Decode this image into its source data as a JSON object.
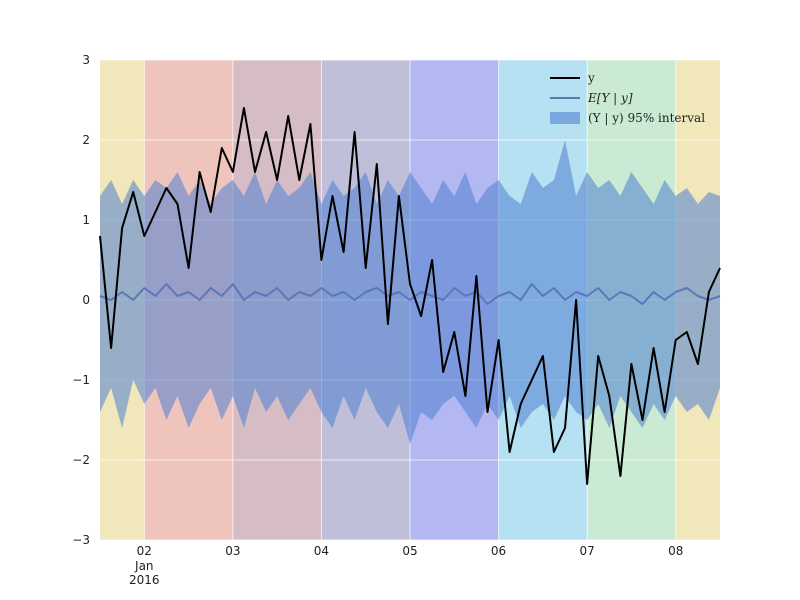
{
  "chart_data": {
    "type": "line",
    "title": "",
    "xlabel": "",
    "ylabel": "",
    "ylim": [
      -3,
      3
    ],
    "xlim": [
      "2016-01-01T12:00",
      "2016-01-08T12:00"
    ],
    "yticks": [
      -3,
      -2,
      -1,
      0,
      1,
      2,
      3
    ],
    "ytick_labels": [
      "−3",
      "−2",
      "−1",
      "0",
      "1",
      "2",
      "3"
    ],
    "xticks": [
      {
        "date": "2016-01-02",
        "label": "02",
        "sublabels": [
          "Jan",
          "2016"
        ]
      },
      {
        "date": "2016-01-03",
        "label": "03",
        "sublabels": []
      },
      {
        "date": "2016-01-04",
        "label": "04",
        "sublabels": []
      },
      {
        "date": "2016-01-05",
        "label": "05",
        "sublabels": []
      },
      {
        "date": "2016-01-06",
        "label": "06",
        "sublabels": []
      },
      {
        "date": "2016-01-07",
        "label": "07",
        "sublabels": []
      },
      {
        "date": "2016-01-08",
        "label": "08",
        "sublabels": []
      }
    ],
    "grid": true,
    "legend_position": "top-right",
    "background_bands": [
      {
        "start": "2016-01-01T12:00",
        "end": "2016-01-02T00:00",
        "color": "#e6d78c"
      },
      {
        "start": "2016-01-02T00:00",
        "end": "2016-01-03T00:00",
        "color": "#e59c8f"
      },
      {
        "start": "2016-01-03T00:00",
        "end": "2016-01-04T00:00",
        "color": "#b98f9f"
      },
      {
        "start": "2016-01-04T00:00",
        "end": "2016-01-05T00:00",
        "color": "#9594c2"
      },
      {
        "start": "2016-01-05T00:00",
        "end": "2016-01-06T00:00",
        "color": "#8288ea"
      },
      {
        "start": "2016-01-06T00:00",
        "end": "2016-01-07T00:00",
        "color": "#84cdea"
      },
      {
        "start": "2016-01-07T00:00",
        "end": "2016-01-08T00:00",
        "color": "#a8dcb6"
      },
      {
        "start": "2016-01-08T00:00",
        "end": "2016-01-08T12:00",
        "color": "#e6d78c"
      }
    ],
    "x": [
      "2016-01-01T12:00",
      "2016-01-01T15:00",
      "2016-01-01T18:00",
      "2016-01-01T21:00",
      "2016-01-02T00:00",
      "2016-01-02T03:00",
      "2016-01-02T06:00",
      "2016-01-02T09:00",
      "2016-01-02T12:00",
      "2016-01-02T15:00",
      "2016-01-02T18:00",
      "2016-01-02T21:00",
      "2016-01-03T00:00",
      "2016-01-03T03:00",
      "2016-01-03T06:00",
      "2016-01-03T09:00",
      "2016-01-03T12:00",
      "2016-01-03T15:00",
      "2016-01-03T18:00",
      "2016-01-03T21:00",
      "2016-01-04T00:00",
      "2016-01-04T03:00",
      "2016-01-04T06:00",
      "2016-01-04T09:00",
      "2016-01-04T12:00",
      "2016-01-04T15:00",
      "2016-01-04T18:00",
      "2016-01-04T21:00",
      "2016-01-05T00:00",
      "2016-01-05T03:00",
      "2016-01-05T06:00",
      "2016-01-05T09:00",
      "2016-01-05T12:00",
      "2016-01-05T15:00",
      "2016-01-05T18:00",
      "2016-01-05T21:00",
      "2016-01-06T00:00",
      "2016-01-06T03:00",
      "2016-01-06T06:00",
      "2016-01-06T09:00",
      "2016-01-06T12:00",
      "2016-01-06T15:00",
      "2016-01-06T18:00",
      "2016-01-06T21:00",
      "2016-01-07T00:00",
      "2016-01-07T03:00",
      "2016-01-07T06:00",
      "2016-01-07T09:00",
      "2016-01-07T12:00",
      "2016-01-07T15:00",
      "2016-01-07T18:00",
      "2016-01-07T21:00",
      "2016-01-08T00:00",
      "2016-01-08T03:00",
      "2016-01-08T06:00",
      "2016-01-08T09:00",
      "2016-01-08T12:00"
    ],
    "series": [
      {
        "name": "y",
        "color": "#000000",
        "values": [
          0.8,
          -0.6,
          0.9,
          1.35,
          0.8,
          1.1,
          1.4,
          1.2,
          0.4,
          1.6,
          1.1,
          1.9,
          1.6,
          2.4,
          1.6,
          2.1,
          1.5,
          2.3,
          1.5,
          2.2,
          0.5,
          1.3,
          0.6,
          2.1,
          0.4,
          1.7,
          -0.3,
          1.3,
          0.2,
          -0.2,
          0.5,
          -0.9,
          -0.4,
          -1.2,
          0.3,
          -1.4,
          -0.5,
          -1.9,
          -1.3,
          -1.0,
          -0.7,
          -1.9,
          -1.6,
          0.0,
          -2.3,
          -0.7,
          -1.2,
          -2.2,
          -0.8,
          -1.5,
          -0.6,
          -1.4,
          -0.5,
          -0.4,
          -0.8,
          0.1,
          0.4
        ]
      },
      {
        "name": "E[Y | y]",
        "legend_label": "E[Y | y]",
        "color": "#5a78b8",
        "values": [
          0.05,
          0.0,
          0.1,
          0.0,
          0.15,
          0.05,
          0.2,
          0.05,
          0.1,
          0.0,
          0.15,
          0.05,
          0.2,
          0.0,
          0.1,
          0.05,
          0.15,
          0.0,
          0.1,
          0.05,
          0.15,
          0.05,
          0.1,
          0.0,
          0.1,
          0.15,
          0.05,
          0.1,
          0.0,
          0.1,
          0.05,
          0.0,
          0.15,
          0.05,
          0.1,
          -0.05,
          0.05,
          0.1,
          0.0,
          0.2,
          0.05,
          0.15,
          0.0,
          0.1,
          0.05,
          0.15,
          0.0,
          0.1,
          0.05,
          -0.05,
          0.1,
          0.0,
          0.1,
          0.15,
          0.05,
          0.0,
          0.05
        ]
      }
    ],
    "interval": {
      "name": "(Y | y) 95% interval",
      "legend_label": "(Y | y) 95% interval",
      "color": "#4f7fd0",
      "upper": [
        1.3,
        1.5,
        1.2,
        1.5,
        1.3,
        1.5,
        1.4,
        1.6,
        1.3,
        1.5,
        1.2,
        1.4,
        1.5,
        1.3,
        1.6,
        1.2,
        1.5,
        1.3,
        1.4,
        1.6,
        1.2,
        1.5,
        1.3,
        1.4,
        1.6,
        1.2,
        1.5,
        1.3,
        1.6,
        1.4,
        1.2,
        1.5,
        1.3,
        1.6,
        1.2,
        1.4,
        1.5,
        1.3,
        1.2,
        1.6,
        1.4,
        1.5,
        2.0,
        1.3,
        1.6,
        1.4,
        1.5,
        1.3,
        1.6,
        1.4,
        1.2,
        1.5,
        1.3,
        1.4,
        1.2,
        1.35,
        1.3
      ],
      "lower": [
        -1.4,
        -1.1,
        -1.6,
        -1.0,
        -1.3,
        -1.1,
        -1.5,
        -1.2,
        -1.6,
        -1.3,
        -1.1,
        -1.5,
        -1.2,
        -1.6,
        -1.1,
        -1.4,
        -1.2,
        -1.5,
        -1.3,
        -1.1,
        -1.4,
        -1.6,
        -1.2,
        -1.5,
        -1.1,
        -1.4,
        -1.6,
        -1.3,
        -1.8,
        -1.4,
        -1.5,
        -1.3,
        -1.2,
        -1.4,
        -1.6,
        -1.3,
        -1.5,
        -1.2,
        -1.6,
        -1.4,
        -1.3,
        -1.5,
        -1.2,
        -1.4,
        -1.5,
        -1.3,
        -1.6,
        -1.2,
        -1.4,
        -1.6,
        -1.3,
        -1.5,
        -1.2,
        -1.4,
        -1.3,
        -1.5,
        -1.1
      ]
    }
  }
}
